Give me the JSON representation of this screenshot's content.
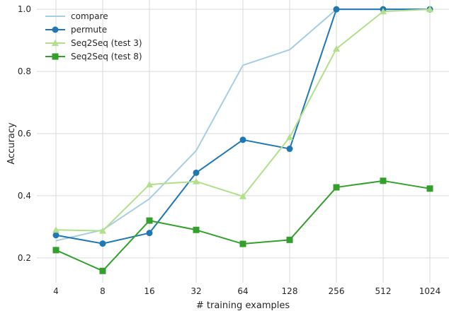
{
  "chart_data": {
    "type": "line",
    "title": "",
    "xlabel": "# training examples",
    "ylabel": "Accuracy",
    "x": [
      "4",
      "8",
      "16",
      "32",
      "64",
      "128",
      "256",
      "512",
      "1024"
    ],
    "ylim": [
      0.12,
      1.03
    ],
    "yticks": [
      "0.2",
      "0.4",
      "0.6",
      "0.8",
      "1.0"
    ],
    "grid": true,
    "legend_position": "top-left",
    "series": [
      {
        "name": "compare",
        "color": "#a6cee3",
        "marker": "none",
        "values": [
          0.255,
          0.29,
          0.39,
          0.545,
          0.82,
          0.87,
          1.0,
          1.0,
          1.0
        ]
      },
      {
        "name": "permute",
        "color": "#1f78b4",
        "marker": "circle",
        "values": [
          0.273,
          0.246,
          0.28,
          0.474,
          0.58,
          0.551,
          1.0,
          1.0,
          1.0
        ]
      },
      {
        "name": "Seq2Seq (test 3)",
        "color": "#b2df8a",
        "marker": "triangle",
        "values": [
          0.29,
          0.287,
          0.436,
          0.446,
          0.398,
          0.588,
          0.873,
          0.993,
          1.0
        ]
      },
      {
        "name": "Seq2Seq (test 8)",
        "color": "#33a02c",
        "marker": "square",
        "values": [
          0.225,
          0.158,
          0.32,
          0.29,
          0.245,
          0.258,
          0.427,
          0.448,
          0.423
        ]
      }
    ]
  }
}
